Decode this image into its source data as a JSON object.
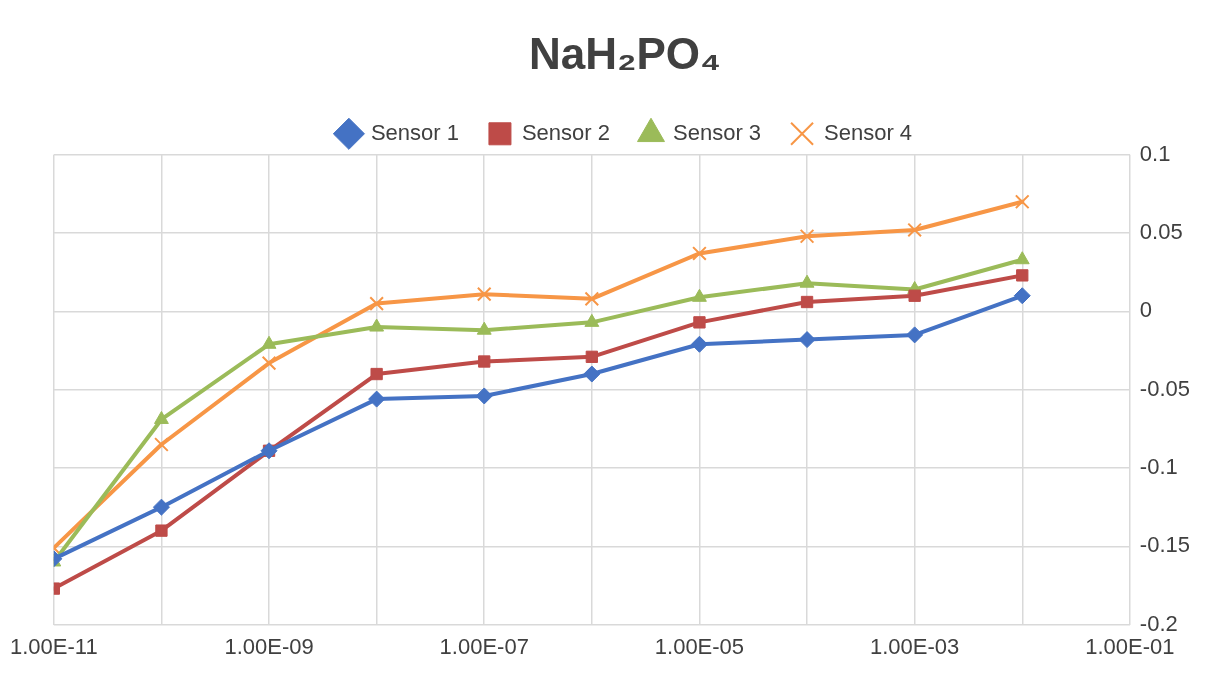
{
  "chart_data": {
    "type": "line",
    "title": "NaH₂PO₄",
    "x": [
      1e-11,
      1e-10,
      1e-09,
      1e-08,
      1e-07,
      1e-06,
      1e-05,
      0.0001,
      0.001,
      0.01
    ],
    "series": [
      {
        "name": "Sensor 1",
        "color": "#4472c4",
        "marker": "diamond",
        "values": [
          -0.158,
          -0.125,
          -0.089,
          -0.056,
          -0.054,
          -0.04,
          -0.021,
          -0.018,
          -0.015,
          0.01
        ]
      },
      {
        "name": "Sensor 2",
        "color": "#be4b48",
        "marker": "square",
        "values": [
          -0.177,
          -0.14,
          -0.089,
          -0.04,
          -0.032,
          -0.029,
          -0.007,
          0.006,
          0.01,
          0.023
        ]
      },
      {
        "name": "Sensor 3",
        "color": "#9bbb59",
        "marker": "triangle",
        "values": [
          -0.16,
          -0.069,
          -0.021,
          -0.01,
          -0.012,
          -0.007,
          0.009,
          0.018,
          0.014,
          0.033
        ]
      },
      {
        "name": "Sensor 4",
        "color": "#f79646",
        "marker": "cross",
        "values": [
          -0.151,
          -0.085,
          -0.033,
          0.005,
          0.011,
          0.008,
          0.037,
          0.048,
          0.052,
          0.07
        ]
      }
    ],
    "log": "x",
    "xlim": [
      1e-11,
      0.1
    ],
    "xticks": [
      {
        "value": 1e-11,
        "label": "1.00E-11"
      },
      {
        "value": 1e-10,
        "label": null
      },
      {
        "value": 1e-09,
        "label": "1.00E-09"
      },
      {
        "value": 1e-08,
        "label": null
      },
      {
        "value": 1e-07,
        "label": "1.00E-07"
      },
      {
        "value": 1e-06,
        "label": null
      },
      {
        "value": 1e-05,
        "label": "1.00E-05"
      },
      {
        "value": 0.0001,
        "label": null
      },
      {
        "value": 0.001,
        "label": "1.00E-03"
      },
      {
        "value": 0.01,
        "label": null
      },
      {
        "value": 0.1,
        "label": "1.00E-01"
      }
    ],
    "ylim": [
      -0.2,
      0.1
    ],
    "yticks": [
      -0.2,
      -0.15,
      -0.1,
      -0.05,
      0,
      0.05,
      0.1
    ],
    "grid": true,
    "legend": "top",
    "line_style": "solid"
  }
}
